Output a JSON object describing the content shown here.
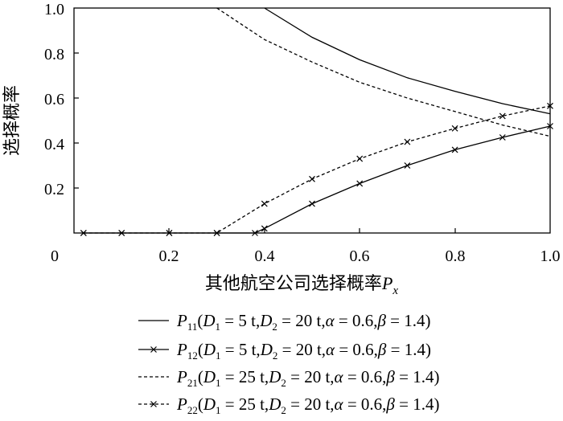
{
  "chart_data": {
    "type": "line",
    "xlabel": {
      "text": "其他航空公司选择概率",
      "var": "P",
      "sub": "x"
    },
    "ylabel": "选择概率",
    "xlim": [
      0,
      1.0
    ],
    "ylim": [
      0,
      1.0
    ],
    "x_ticks": [
      "0",
      "0.2",
      "0.4",
      "0.6",
      "0.8",
      "1.0"
    ],
    "y_ticks": [
      "0.2",
      "0.4",
      "0.6",
      "0.8",
      "1.0"
    ],
    "grid": false,
    "legend_position": "bottom",
    "series": [
      {
        "name": "P11",
        "sub": "11",
        "params": "(D1 = 5 t,D2 = 20 t,α = 0.6,β = 1.4)",
        "d1": "5 t",
        "dash": "solid",
        "marker": "none",
        "x": [
          0.4,
          0.5,
          0.6,
          0.7,
          0.8,
          0.9,
          1.0
        ],
        "y": [
          1.0,
          0.87,
          0.77,
          0.69,
          0.63,
          0.575,
          0.53
        ]
      },
      {
        "name": "P12",
        "sub": "12",
        "params": "(D1 = 5 t,D2 = 20 t,α = 0.6,β = 1.4)",
        "d1": "5 t",
        "dash": "solid",
        "marker": "x",
        "x": [
          0.02,
          0.1,
          0.2,
          0.3,
          0.38,
          0.4,
          0.5,
          0.6,
          0.7,
          0.8,
          0.9,
          1.0
        ],
        "y": [
          0.0,
          0.0,
          0.0,
          0.0,
          0.0,
          0.02,
          0.13,
          0.22,
          0.3,
          0.37,
          0.425,
          0.475
        ]
      },
      {
        "name": "P21",
        "sub": "21",
        "params": "(D1 = 25 t,D2 = 20 t,α = 0.6,β = 1.4)",
        "d1": "25 t",
        "dash": "dashed",
        "marker": "none",
        "x": [
          0.3,
          0.4,
          0.5,
          0.6,
          0.7,
          0.8,
          0.9,
          1.0
        ],
        "y": [
          1.0,
          0.86,
          0.76,
          0.67,
          0.6,
          0.54,
          0.48,
          0.43
        ]
      },
      {
        "name": "P22",
        "sub": "22",
        "params": "(D1 = 25 t,D2 = 20 t,α = 0.6,β = 1.4)",
        "d1": "25 t",
        "dash": "dashed",
        "marker": "x",
        "x": [
          0.02,
          0.1,
          0.2,
          0.3,
          0.4,
          0.5,
          0.6,
          0.7,
          0.8,
          0.9,
          1.0
        ],
        "y": [
          0.0,
          0.0,
          0.0,
          0.0,
          0.13,
          0.24,
          0.33,
          0.405,
          0.465,
          0.52,
          0.565
        ]
      }
    ]
  }
}
